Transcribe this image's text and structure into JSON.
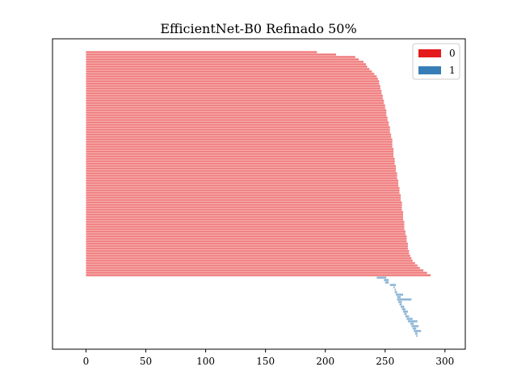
{
  "chart_data": {
    "type": "bar",
    "orientation": "horizontal",
    "title": "EfficientNet-B0 Refinado 50%",
    "xlabel": "",
    "ylabel": "",
    "xlim": [
      -28,
      317
    ],
    "xticks": [
      0,
      50,
      100,
      150,
      200,
      250,
      300
    ],
    "xtick_labels": [
      "0",
      "50",
      "100",
      "150",
      "200",
      "250",
      "300"
    ],
    "grid": false,
    "legend_position": "top-right",
    "bar_alpha": 0.6,
    "series": [
      {
        "name": "0",
        "color": "#e41a1c",
        "bars": [
          {
            "start": 0,
            "value": 193
          },
          {
            "start": 0,
            "value": 209
          },
          {
            "start": 0,
            "value": 225
          },
          {
            "start": 0,
            "value": 228
          },
          {
            "start": 0,
            "value": 232
          },
          {
            "start": 0,
            "value": 234
          },
          {
            "start": 0,
            "value": 235
          },
          {
            "start": 0,
            "value": 237
          },
          {
            "start": 0,
            "value": 239
          },
          {
            "start": 0,
            "value": 241
          },
          {
            "start": 0,
            "value": 243
          },
          {
            "start": 0,
            "value": 244
          },
          {
            "start": 0,
            "value": 245
          },
          {
            "start": 0,
            "value": 245
          },
          {
            "start": 0,
            "value": 246
          },
          {
            "start": 0,
            "value": 246
          },
          {
            "start": 0,
            "value": 247
          },
          {
            "start": 0,
            "value": 247
          },
          {
            "start": 0,
            "value": 248
          },
          {
            "start": 0,
            "value": 248
          },
          {
            "start": 0,
            "value": 249
          },
          {
            "start": 0,
            "value": 249
          },
          {
            "start": 0,
            "value": 250
          },
          {
            "start": 0,
            "value": 250
          },
          {
            "start": 0,
            "value": 251
          },
          {
            "start": 0,
            "value": 251
          },
          {
            "start": 0,
            "value": 251
          },
          {
            "start": 0,
            "value": 252
          },
          {
            "start": 0,
            "value": 252
          },
          {
            "start": 0,
            "value": 253
          },
          {
            "start": 0,
            "value": 253
          },
          {
            "start": 0,
            "value": 254
          },
          {
            "start": 0,
            "value": 254
          },
          {
            "start": 0,
            "value": 254
          },
          {
            "start": 0,
            "value": 255
          },
          {
            "start": 0,
            "value": 255
          },
          {
            "start": 0,
            "value": 256
          },
          {
            "start": 0,
            "value": 256
          },
          {
            "start": 0,
            "value": 256
          },
          {
            "start": 0,
            "value": 256
          },
          {
            "start": 0,
            "value": 257
          },
          {
            "start": 0,
            "value": 257
          },
          {
            "start": 0,
            "value": 257
          },
          {
            "start": 0,
            "value": 257
          },
          {
            "start": 0,
            "value": 258
          },
          {
            "start": 0,
            "value": 258
          },
          {
            "start": 0,
            "value": 258
          },
          {
            "start": 0,
            "value": 259
          },
          {
            "start": 0,
            "value": 259
          },
          {
            "start": 0,
            "value": 259
          },
          {
            "start": 0,
            "value": 260
          },
          {
            "start": 0,
            "value": 260
          },
          {
            "start": 0,
            "value": 260
          },
          {
            "start": 0,
            "value": 261
          },
          {
            "start": 0,
            "value": 261
          },
          {
            "start": 0,
            "value": 261
          },
          {
            "start": 0,
            "value": 262
          },
          {
            "start": 0,
            "value": 262
          },
          {
            "start": 0,
            "value": 262
          },
          {
            "start": 0,
            "value": 263
          },
          {
            "start": 0,
            "value": 263
          },
          {
            "start": 0,
            "value": 263
          },
          {
            "start": 0,
            "value": 264
          },
          {
            "start": 0,
            "value": 264
          },
          {
            "start": 0,
            "value": 264
          },
          {
            "start": 0,
            "value": 264
          },
          {
            "start": 0,
            "value": 265
          },
          {
            "start": 0,
            "value": 265
          },
          {
            "start": 0,
            "value": 265
          },
          {
            "start": 0,
            "value": 265
          },
          {
            "start": 0,
            "value": 266
          },
          {
            "start": 0,
            "value": 266
          },
          {
            "start": 0,
            "value": 266
          },
          {
            "start": 0,
            "value": 266
          },
          {
            "start": 0,
            "value": 267
          },
          {
            "start": 0,
            "value": 267
          },
          {
            "start": 0,
            "value": 268
          },
          {
            "start": 0,
            "value": 268
          },
          {
            "start": 0,
            "value": 268
          },
          {
            "start": 0,
            "value": 269
          },
          {
            "start": 0,
            "value": 269
          },
          {
            "start": 0,
            "value": 269
          },
          {
            "start": 0,
            "value": 270
          },
          {
            "start": 0,
            "value": 270
          },
          {
            "start": 0,
            "value": 271
          },
          {
            "start": 0,
            "value": 272
          },
          {
            "start": 0,
            "value": 273
          },
          {
            "start": 0,
            "value": 275
          },
          {
            "start": 0,
            "value": 277
          },
          {
            "start": 0,
            "value": 279
          },
          {
            "start": 0,
            "value": 282
          },
          {
            "start": 0,
            "value": 285
          },
          {
            "start": 0,
            "value": 288
          }
        ]
      },
      {
        "name": "1",
        "color": "#377eb8",
        "bars": [
          {
            "start": 243,
            "value": 8
          },
          {
            "start": 249,
            "value": 4
          },
          {
            "start": 250,
            "value": 3
          },
          {
            "start": 254,
            "value": 5
          },
          {
            "start": 257,
            "value": 1
          },
          {
            "start": 258,
            "value": 1
          },
          {
            "start": 258,
            "value": 2
          },
          {
            "start": 259,
            "value": 6
          },
          {
            "start": 260,
            "value": 3
          },
          {
            "start": 260,
            "value": 12
          },
          {
            "start": 261,
            "value": 3
          },
          {
            "start": 262,
            "value": 2
          },
          {
            "start": 263,
            "value": 3
          },
          {
            "start": 264,
            "value": 3
          },
          {
            "start": 265,
            "value": 4
          },
          {
            "start": 266,
            "value": 2
          },
          {
            "start": 267,
            "value": 3
          },
          {
            "start": 268,
            "value": 5
          },
          {
            "start": 269,
            "value": 8
          },
          {
            "start": 271,
            "value": 3
          },
          {
            "start": 272,
            "value": 6
          },
          {
            "start": 273,
            "value": 3
          },
          {
            "start": 274,
            "value": 6
          },
          {
            "start": 275,
            "value": 2
          },
          {
            "start": 276,
            "value": 1
          }
        ]
      }
    ]
  }
}
